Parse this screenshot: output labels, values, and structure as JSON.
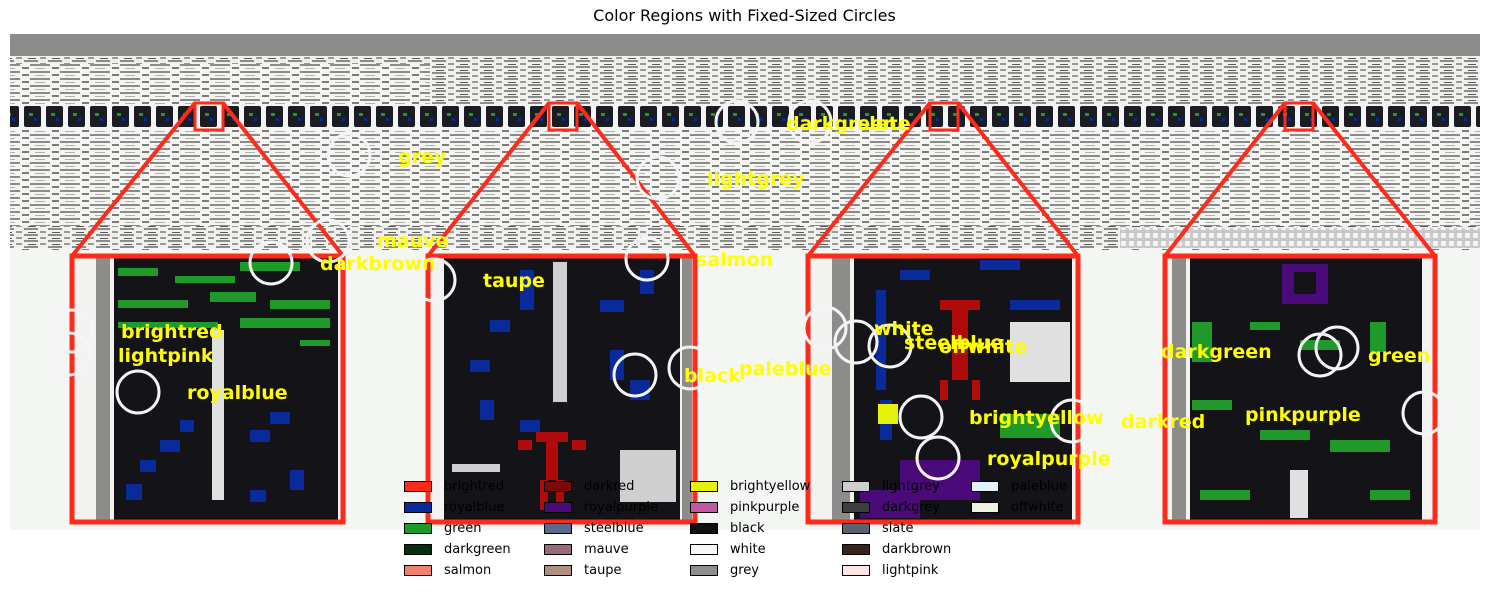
{
  "title": "Color Regions with Fixed-Sized Circles",
  "colors": {
    "background": "#f4f6f4",
    "panel_bg": "#141418",
    "gray_band": "#8c8d8a",
    "highlight": "#ff2a1a",
    "label": "#ffff00",
    "circle": "#ffffff"
  },
  "circle_labels": [
    "grey",
    "darkgreen",
    "slate",
    "lightgrey",
    "mauve",
    "darkbrown",
    "taupe",
    "salmon",
    "brightred",
    "lightpink",
    "royalblue",
    "black",
    "paleblue",
    "white",
    "steelblue",
    "offwhite",
    "brightyellow",
    "darkred",
    "royalpurple",
    "darkgreen",
    "green",
    "pinkpurple"
  ],
  "legend": [
    {
      "name": "brightred",
      "color": "#ff2a1a"
    },
    {
      "name": "royalblue",
      "color": "#0a2a9c"
    },
    {
      "name": "green",
      "color": "#1f9a2a"
    },
    {
      "name": "darkgreen",
      "color": "#05300d"
    },
    {
      "name": "salmon",
      "color": "#f28070"
    },
    {
      "name": "darkred",
      "color": "#7a0a0a"
    },
    {
      "name": "royalpurple",
      "color": "#4a0a7a"
    },
    {
      "name": "steelblue",
      "color": "#5a6a8e"
    },
    {
      "name": "mauve",
      "color": "#9a6a78"
    },
    {
      "name": "taupe",
      "color": "#b09080"
    },
    {
      "name": "brightyellow",
      "color": "#e6f20a"
    },
    {
      "name": "pinkpurple",
      "color": "#c05aa0"
    },
    {
      "name": "black",
      "color": "#111111"
    },
    {
      "name": "white",
      "color": "#f7f7f7"
    },
    {
      "name": "grey",
      "color": "#8e8e8e"
    },
    {
      "name": "lightgrey",
      "color": "#cecece"
    },
    {
      "name": "darkgrey",
      "color": "#3e3e3e"
    },
    {
      "name": "slate",
      "color": "#5a6470"
    },
    {
      "name": "darkbrown",
      "color": "#3a2418"
    },
    {
      "name": "lightpink",
      "color": "#fde4e6"
    },
    {
      "name": "paleblue",
      "color": "#e2f0fb"
    },
    {
      "name": "offwhite",
      "color": "#eef2e0"
    }
  ]
}
